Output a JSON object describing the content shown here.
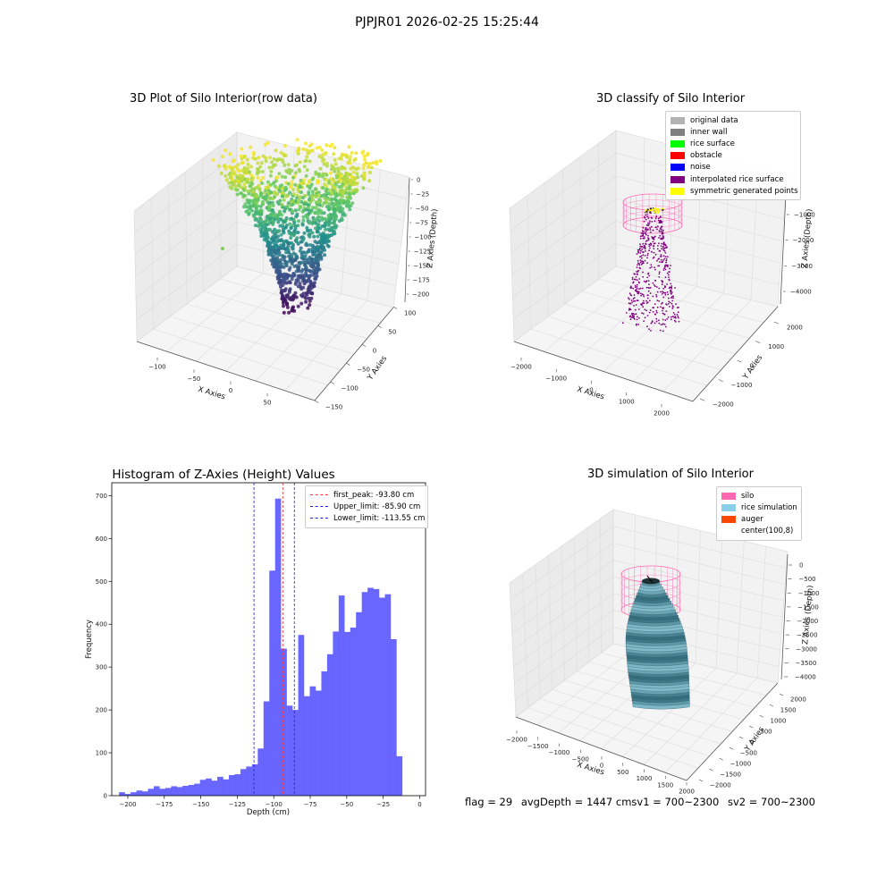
{
  "header": {
    "title": "PJPJR01 2026-02-25 15:25:44"
  },
  "colors": {
    "hist_bar": "#4e4bff",
    "first_peak_line": "#ff3030",
    "limit_lines": "#2020d0",
    "silo_mesh": "#ff69b4",
    "rice_surface": "#7fb7c7",
    "auger": "#ff4500"
  },
  "footer": {
    "flag": "flag = 29",
    "avg_depth": "avgDepth = 1447 cm",
    "sv1": "sv1 = 700~2300",
    "sv2": "sv2 = 700~2300"
  },
  "chart_data": [
    {
      "type": "scatter",
      "title": "3D Plot of Silo Interior(row data)",
      "xlabel": "X Axies",
      "ylabel": "Y Axies",
      "zlabel": "Z Axies (Depth)",
      "x_ticks": [
        "−100",
        "−50",
        "0",
        "50"
      ],
      "y_ticks": [
        "−150",
        "−100",
        "−50",
        "0",
        "50",
        "100"
      ],
      "z_ticks": [
        "0",
        "−25",
        "−50",
        "−75",
        "−100",
        "−125",
        "−150",
        "−175",
        "−200"
      ],
      "colormap": "viridis",
      "zlim": [
        -215,
        0
      ]
    },
    {
      "type": "scatter",
      "title": "3D classify of Silo Interior",
      "xlabel": "X Axies",
      "ylabel": "Y Axies",
      "zlabel": "Z Axies (Depth)",
      "x_ticks": [
        "−2000",
        "−1000",
        "0",
        "1000",
        "2000"
      ],
      "y_ticks": [
        "−2000",
        "−1000",
        "0",
        "1000",
        "2000"
      ],
      "z_ticks": [
        "−1000",
        "−2000",
        "−3000",
        "−4000"
      ],
      "legend": [
        {
          "label": "original data",
          "color": "#b3b3b3"
        },
        {
          "label": "inner wall",
          "color": "#808080"
        },
        {
          "label": "rice surface",
          "color": "#00ff00"
        },
        {
          "label": "obstacle",
          "color": "#ff0000"
        },
        {
          "label": "noise",
          "color": "#0000ff"
        },
        {
          "label": "interpolated rice surface",
          "color": "#800080"
        },
        {
          "label": "symmetric generated points",
          "color": "#ffff00"
        }
      ]
    },
    {
      "type": "bar",
      "title": "Histogram of Z-Axies (Height) Values",
      "xlabel": "Depth (cm)",
      "ylabel": "Frequency",
      "xlim": [
        -211,
        4
      ],
      "ylim": [
        0,
        730
      ],
      "x_ticks": [
        -200,
        -175,
        -150,
        -125,
        -100,
        -75,
        -50,
        -25,
        0
      ],
      "x_tick_labels": [
        "−200",
        "−175",
        "−150",
        "−125",
        "−100",
        "−75",
        "−50",
        "−25",
        "0"
      ],
      "y_ticks": [
        0,
        100,
        200,
        300,
        400,
        500,
        600,
        700
      ],
      "bin_start": -206,
      "bin_width": 3.96,
      "values": [
        8,
        4,
        8,
        12,
        10,
        16,
        22,
        16,
        18,
        22,
        20,
        23,
        25,
        28,
        37,
        40,
        35,
        44,
        38,
        48,
        50,
        62,
        68,
        73,
        110,
        220,
        525,
        693,
        343,
        210,
        200,
        375,
        232,
        255,
        245,
        290,
        330,
        383,
        467,
        382,
        392,
        428,
        475,
        485,
        482,
        462,
        470,
        365,
        92
      ],
      "lines": [
        {
          "name": "first_peak",
          "label": "first_peak: -93.80 cm",
          "value": -93.8,
          "style": "red"
        },
        {
          "name": "upper_limit",
          "label": "Upper_limit: -85.90 cm",
          "value": -85.9,
          "style": "blue"
        },
        {
          "name": "lower_limit",
          "label": "Lower_limit: -113.55 cm",
          "value": -113.55,
          "style": "blue"
        }
      ]
    },
    {
      "type": "area",
      "title": "3D simulation of Silo Interior",
      "xlabel": "X Axies",
      "ylabel": "Y Axies",
      "zlabel": "Z Axies (Depth)",
      "x_ticks": [
        "−2000",
        "−1500",
        "−1000",
        "−500",
        "0",
        "500",
        "1000",
        "1500",
        "2000"
      ],
      "y_ticks": [
        "−2000",
        "−1500",
        "−1000",
        "−500",
        "0",
        "500",
        "1000",
        "1500",
        "2000"
      ],
      "z_ticks": [
        "0",
        "−500",
        "−1000",
        "−1500",
        "−2000",
        "−2500",
        "−3000",
        "−3500",
        "−4000"
      ],
      "legend": [
        {
          "label": "silo",
          "color": "#ff69b4"
        },
        {
          "label": "rice simulation",
          "color": "#87ceeb"
        },
        {
          "label": "auger",
          "color": "#ff4500"
        },
        {
          "label": "center(100,8)",
          "color": "#ffffff"
        }
      ]
    }
  ]
}
